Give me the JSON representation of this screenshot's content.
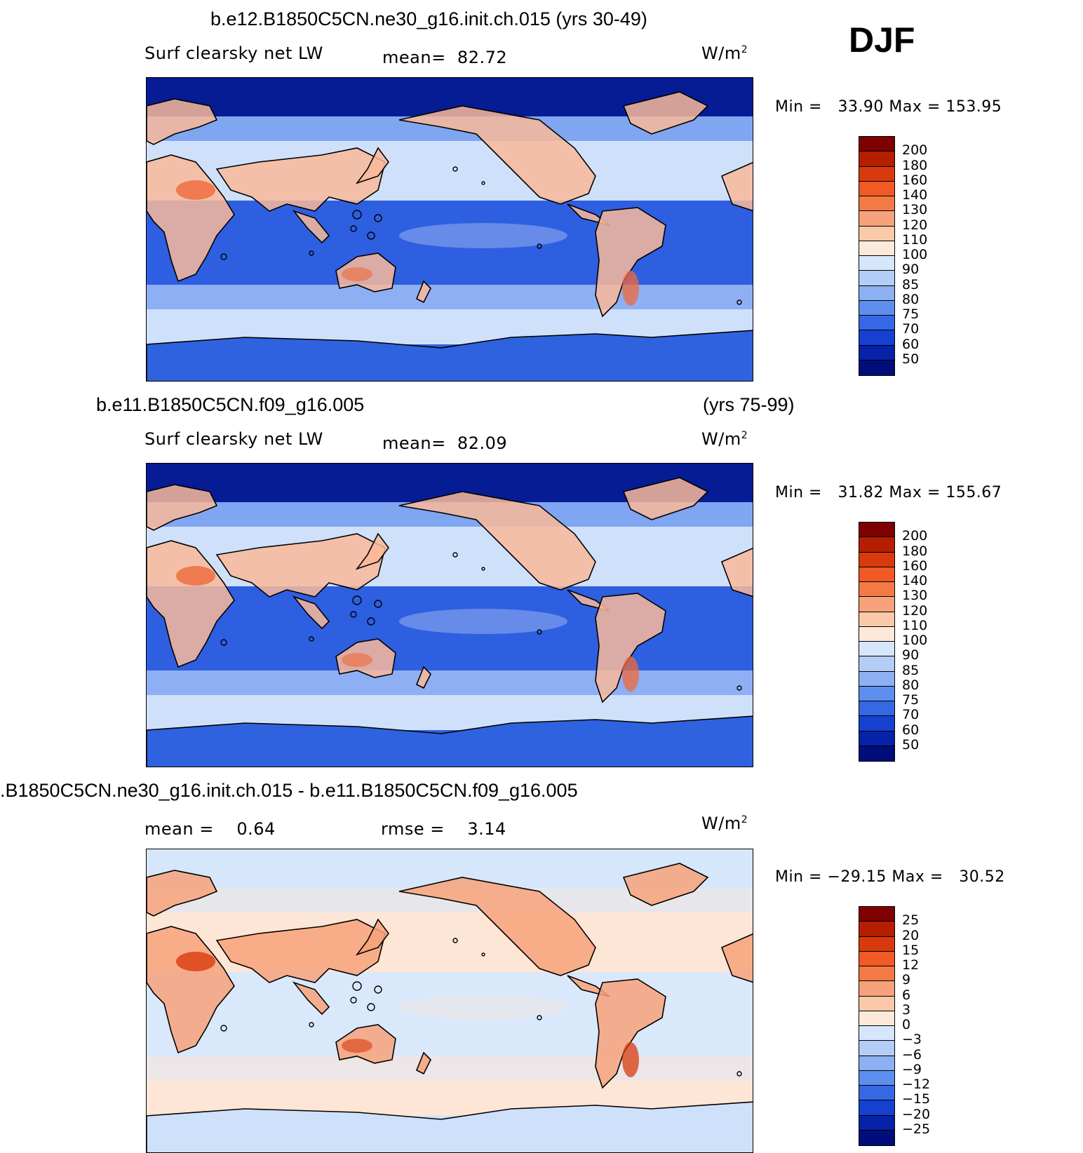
{
  "season": "DJF",
  "panels": [
    {
      "title": "b.e12.B1850C5CN.ne30_g16.init.ch.015 (yrs 30-49)",
      "title_right": "",
      "variable": "Surf clearsky net LW",
      "stat": "mean=  82.72",
      "stat2": "",
      "units": "W/m",
      "units_sup": "2",
      "minmax": "Min =   33.90 Max = 153.95",
      "colorbar": {
        "labels": [
          "200",
          "180",
          "160",
          "140",
          "130",
          "120",
          "110",
          "100",
          "90",
          "85",
          "80",
          "75",
          "70",
          "60",
          "50"
        ],
        "colors": [
          "#7f0000",
          "#b51f00",
          "#d93a0d",
          "#ef5a25",
          "#f47a45",
          "#f7a27a",
          "#fbc8a8",
          "#fde9da",
          "#d6e6fb",
          "#b4cdf7",
          "#8cb0f2",
          "#5e8eee",
          "#3667e4",
          "#1640d0",
          "#0522a8",
          "#000d7a"
        ]
      },
      "fills": {
        "ocean_mid": "#cfe0fa",
        "ocean_trop": "#2e5fe0",
        "arctic": "#061c94",
        "land_warm": "#f9b89a",
        "land_hot": "#ef6a3a",
        "southern": "#3f74ea",
        "antarctic": "#2f62de"
      }
    },
    {
      "title": "b.e11.B1850C5CN.f09_g16.005",
      "title_right": "(yrs 75-99)",
      "variable": "Surf clearsky net LW",
      "stat": "mean=  82.09",
      "stat2": "",
      "units": "W/m",
      "units_sup": "2",
      "minmax": "Min =   31.82 Max = 155.67",
      "colorbar": {
        "labels": [
          "200",
          "180",
          "160",
          "140",
          "130",
          "120",
          "110",
          "100",
          "90",
          "85",
          "80",
          "75",
          "70",
          "60",
          "50"
        ],
        "colors": [
          "#7f0000",
          "#b51f00",
          "#d93a0d",
          "#ef5a25",
          "#f47a45",
          "#f7a27a",
          "#fbc8a8",
          "#fde9da",
          "#d6e6fb",
          "#b4cdf7",
          "#8cb0f2",
          "#5e8eee",
          "#3667e4",
          "#1640d0",
          "#0522a8",
          "#000d7a"
        ]
      },
      "fills": {
        "ocean_mid": "#cfe0fa",
        "ocean_trop": "#2e5fe0",
        "arctic": "#061c94",
        "land_warm": "#f9b89a",
        "land_hot": "#ef6a3a",
        "southern": "#3f74ea",
        "antarctic": "#2f62de"
      }
    },
    {
      "title": ".B1850C5CN.ne30_g16.init.ch.015 - b.e11.B1850C5CN.f09_g16.005",
      "title_right": "",
      "variable": "mean =    0.64",
      "stat": "rmse =    3.14",
      "stat2": "",
      "units": "W/m",
      "units_sup": "2",
      "minmax": "Min = −29.15 Max =   30.52",
      "colorbar": {
        "labels": [
          "25",
          "20",
          "15",
          "12",
          "9",
          "6",
          "3",
          "0",
          "−3",
          "−6",
          "−9",
          "−12",
          "−15",
          "−20",
          "−25"
        ],
        "colors": [
          "#7f0000",
          "#b51f00",
          "#d93a0d",
          "#ef5a25",
          "#f47a45",
          "#f7a27a",
          "#fbc8a8",
          "#fde9da",
          "#d6e6fb",
          "#b4cdf7",
          "#8cb0f2",
          "#5e8eee",
          "#3667e4",
          "#1640d0",
          "#0522a8",
          "#000d7a"
        ]
      },
      "fills": {
        "ocean_mid": "#fde6d6",
        "ocean_trop": "#d9e8fb",
        "arctic": "#d6e6fb",
        "land_warm": "#f7a27a",
        "land_hot": "#d93a0d",
        "southern": "#d6e6fb",
        "antarctic": "#cfe0fa"
      }
    }
  ]
}
